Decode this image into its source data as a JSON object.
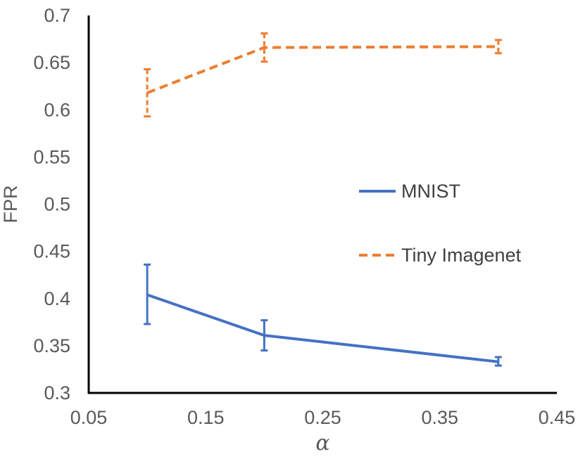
{
  "chart_data": {
    "type": "line",
    "title": "",
    "xlabel": "α",
    "ylabel": "FPR",
    "xlim": [
      0.05,
      0.45
    ],
    "ylim": [
      0.3,
      0.7
    ],
    "xticks": [
      "0.05",
      "0.15",
      "0.25",
      "0.35",
      "0.45"
    ],
    "yticks": [
      "0.3",
      "0.35",
      "0.4",
      "0.45",
      "0.5",
      "0.55",
      "0.6",
      "0.65",
      "0.7"
    ],
    "xtick_values": [
      0.05,
      0.15,
      0.25,
      0.35,
      0.45
    ],
    "ytick_values": [
      0.3,
      0.35,
      0.4,
      0.45,
      0.5,
      0.55,
      0.6,
      0.65,
      0.7
    ],
    "grid": false,
    "legend_position": "right-middle",
    "series": [
      {
        "name": "MNIST",
        "color": "#4472C4",
        "dash": "solid",
        "x": [
          0.1,
          0.2,
          0.4
        ],
        "values": [
          0.404,
          0.361,
          0.333
        ],
        "err_low": [
          0.373,
          0.345,
          0.329
        ],
        "err_high": [
          0.436,
          0.377,
          0.338
        ]
      },
      {
        "name": "Tiny Imagenet",
        "color": "#ED7D31",
        "dash": "dashed",
        "x": [
          0.1,
          0.2,
          0.4
        ],
        "values": [
          0.618,
          0.666,
          0.667
        ],
        "err_low": [
          0.593,
          0.651,
          0.66
        ],
        "err_high": [
          0.643,
          0.681,
          0.674
        ]
      }
    ]
  }
}
